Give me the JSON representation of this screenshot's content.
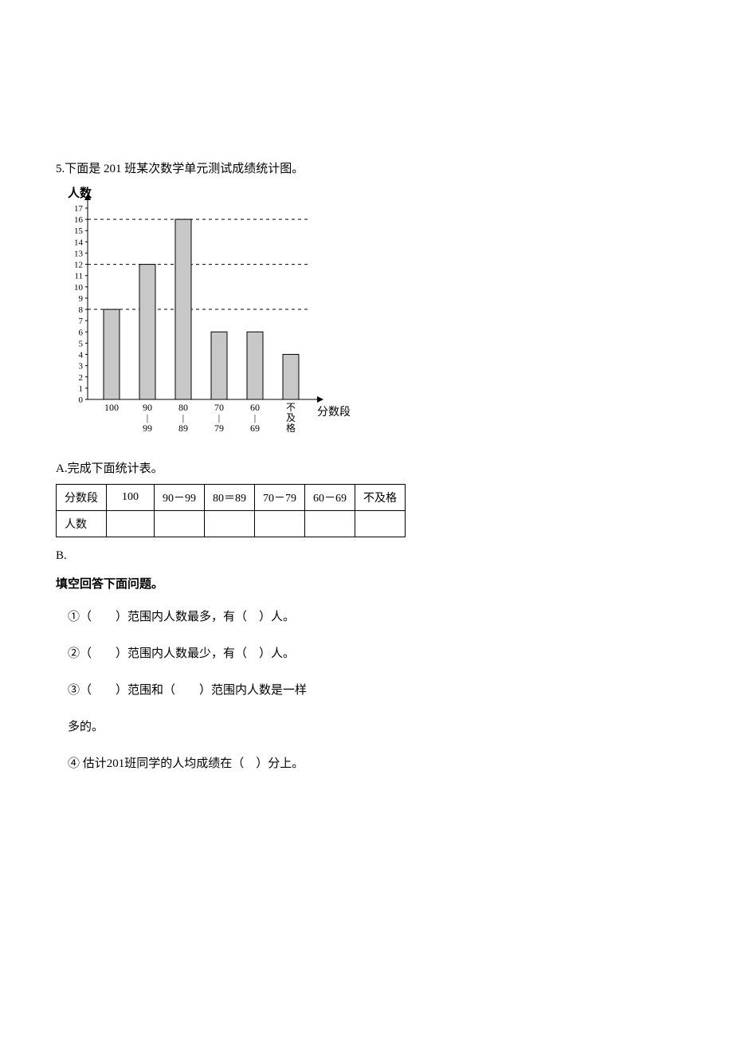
{
  "problem": {
    "title": "5.下面是 201 班某次数学单元测试成绩统计图。"
  },
  "chart": {
    "type": "bar",
    "y_axis_label": "人数",
    "x_axis_label": "分数段",
    "y_max": 17,
    "y_ticks": [
      "17",
      "16",
      "15",
      "14",
      "13",
      "12",
      "11",
      "10",
      "9",
      "8",
      "7",
      "6",
      "5",
      "4",
      "3",
      "2",
      "1",
      "0"
    ],
    "x_categories": [
      "100",
      "90\n|\n99",
      "80\n|\n89",
      "70\n|\n79",
      "60\n|\n69",
      "不\n及\n格"
    ],
    "values": [
      8,
      12,
      16,
      6,
      6,
      4
    ],
    "bar_color_fill": "#c8c8c8",
    "bar_color_border": "#000000",
    "guide_lines": [
      8,
      12,
      16
    ],
    "axis_color": "#000000",
    "background": "#ffffff"
  },
  "sectionA": {
    "label": "A.完成下面统计表。"
  },
  "table": {
    "headers": [
      "分数段",
      "100",
      "90－99",
      "80＝89",
      "70－79",
      "60－69",
      "不及格"
    ],
    "row_header": "人数",
    "cells": [
      "",
      "",
      "",
      "",
      "",
      ""
    ]
  },
  "sectionB": {
    "label": "B.",
    "heading": "填空回答下面问题。",
    "q1": "①（　　）范围内人数最多，有（　）人。",
    "q2": "②（　　）范围内人数最少，有（　）人。",
    "q3": "③（　　）范围和（　　）范围内人数是一样",
    "q3b": "多的。",
    "q4": "④ 估计201班同学的人均成绩在（　）分上。"
  }
}
